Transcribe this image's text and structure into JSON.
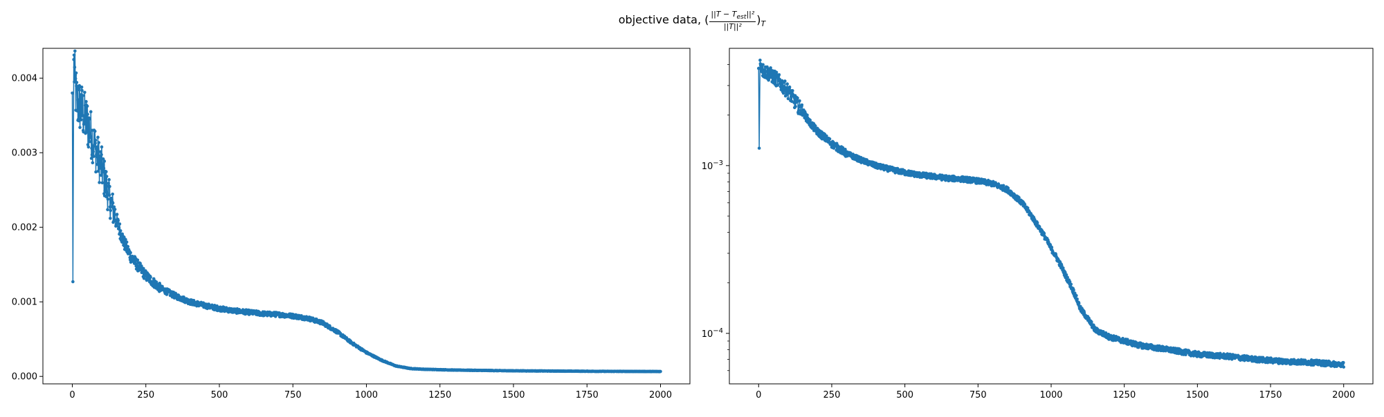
{
  "figure": {
    "title_prefix": "objective data,",
    "title_frac_num": "||T − T",
    "title_frac_num_sub": "est",
    "title_frac_num_tail": "||²",
    "title_frac_den": "||T||²",
    "title_subscript": "T"
  },
  "chart_data": [
    {
      "type": "line",
      "scale": "linear",
      "xlim": [
        -100,
        2100
      ],
      "ylim": [
        -0.0001,
        0.0044
      ],
      "xticks": [
        0,
        250,
        500,
        750,
        1000,
        1250,
        1500,
        1750,
        2000
      ],
      "xtick_labels": [
        "0",
        "250",
        "500",
        "750",
        "1000",
        "1250",
        "1500",
        "1750",
        "2000"
      ],
      "yticks": [
        0.0,
        0.001,
        0.002,
        0.003,
        0.004
      ],
      "ytick_labels": [
        "0.000",
        "0.001",
        "0.002",
        "0.003",
        "0.004"
      ],
      "marker": "dot",
      "color": "#1f77b4",
      "series": [
        {
          "x": [
            0,
            2,
            5,
            10,
            15,
            20,
            30,
            40,
            50,
            60,
            75,
            90,
            100,
            125,
            150,
            175,
            200,
            250,
            300,
            350,
            400,
            450,
            500,
            550,
            600,
            650,
            700,
            750,
            800,
            850,
            900,
            950,
            1000,
            1050,
            1100,
            1150,
            1200,
            1250,
            1300,
            1400,
            1500,
            1600,
            1700,
            1800,
            1900,
            2000
          ],
          "y": [
            0.0038,
            0.00127,
            0.00425,
            0.0039,
            0.0037,
            0.00365,
            0.0036,
            0.0035,
            0.0034,
            0.0033,
            0.0031,
            0.0029,
            0.0028,
            0.0024,
            0.0021,
            0.0018,
            0.0016,
            0.00135,
            0.00118,
            0.00108,
            0.001,
            0.00095,
            0.00091,
            0.00088,
            0.00086,
            0.00084,
            0.00083,
            0.00081,
            0.00078,
            0.00072,
            0.0006,
            0.00045,
            0.00032,
            0.00022,
            0.00014,
            0.000105,
            9.5e-05,
            9e-05,
            8.5e-05,
            8e-05,
            7.5e-05,
            7.3e-05,
            7e-05,
            6.8e-05,
            6.7e-05,
            6.5e-05
          ]
        }
      ]
    },
    {
      "type": "line",
      "scale": "log",
      "xlim": [
        -100,
        2100
      ],
      "ylim": [
        5e-05,
        0.005
      ],
      "xticks": [
        0,
        250,
        500,
        750,
        1000,
        1250,
        1500,
        1750,
        2000
      ],
      "xtick_labels": [
        "0",
        "250",
        "500",
        "750",
        "1000",
        "1250",
        "1500",
        "1750",
        "2000"
      ],
      "yticks": [
        0.0001,
        0.001
      ],
      "ytick_base": "10",
      "ytick_exponents": [
        "−4",
        "−3"
      ],
      "marker": "dot",
      "color": "#1f77b4",
      "series": [
        {
          "x": [
            0,
            2,
            5,
            10,
            15,
            20,
            30,
            40,
            50,
            60,
            75,
            90,
            100,
            125,
            150,
            175,
            200,
            250,
            300,
            350,
            400,
            450,
            500,
            550,
            600,
            650,
            700,
            750,
            800,
            850,
            900,
            950,
            1000,
            1050,
            1100,
            1150,
            1200,
            1250,
            1300,
            1400,
            1500,
            1600,
            1700,
            1800,
            1900,
            2000
          ],
          "y": [
            0.0038,
            0.00127,
            0.00425,
            0.0039,
            0.0037,
            0.00365,
            0.0036,
            0.0035,
            0.0034,
            0.0033,
            0.0031,
            0.0029,
            0.0028,
            0.0024,
            0.0021,
            0.0018,
            0.0016,
            0.00135,
            0.00118,
            0.00108,
            0.001,
            0.00095,
            0.00091,
            0.00088,
            0.00086,
            0.00084,
            0.00083,
            0.00081,
            0.00078,
            0.00072,
            0.0006,
            0.00045,
            0.00032,
            0.00022,
            0.00014,
            0.000105,
            9.5e-05,
            9e-05,
            8.5e-05,
            8e-05,
            7.5e-05,
            7.3e-05,
            7e-05,
            6.8e-05,
            6.7e-05,
            6.5e-05
          ]
        }
      ]
    }
  ]
}
